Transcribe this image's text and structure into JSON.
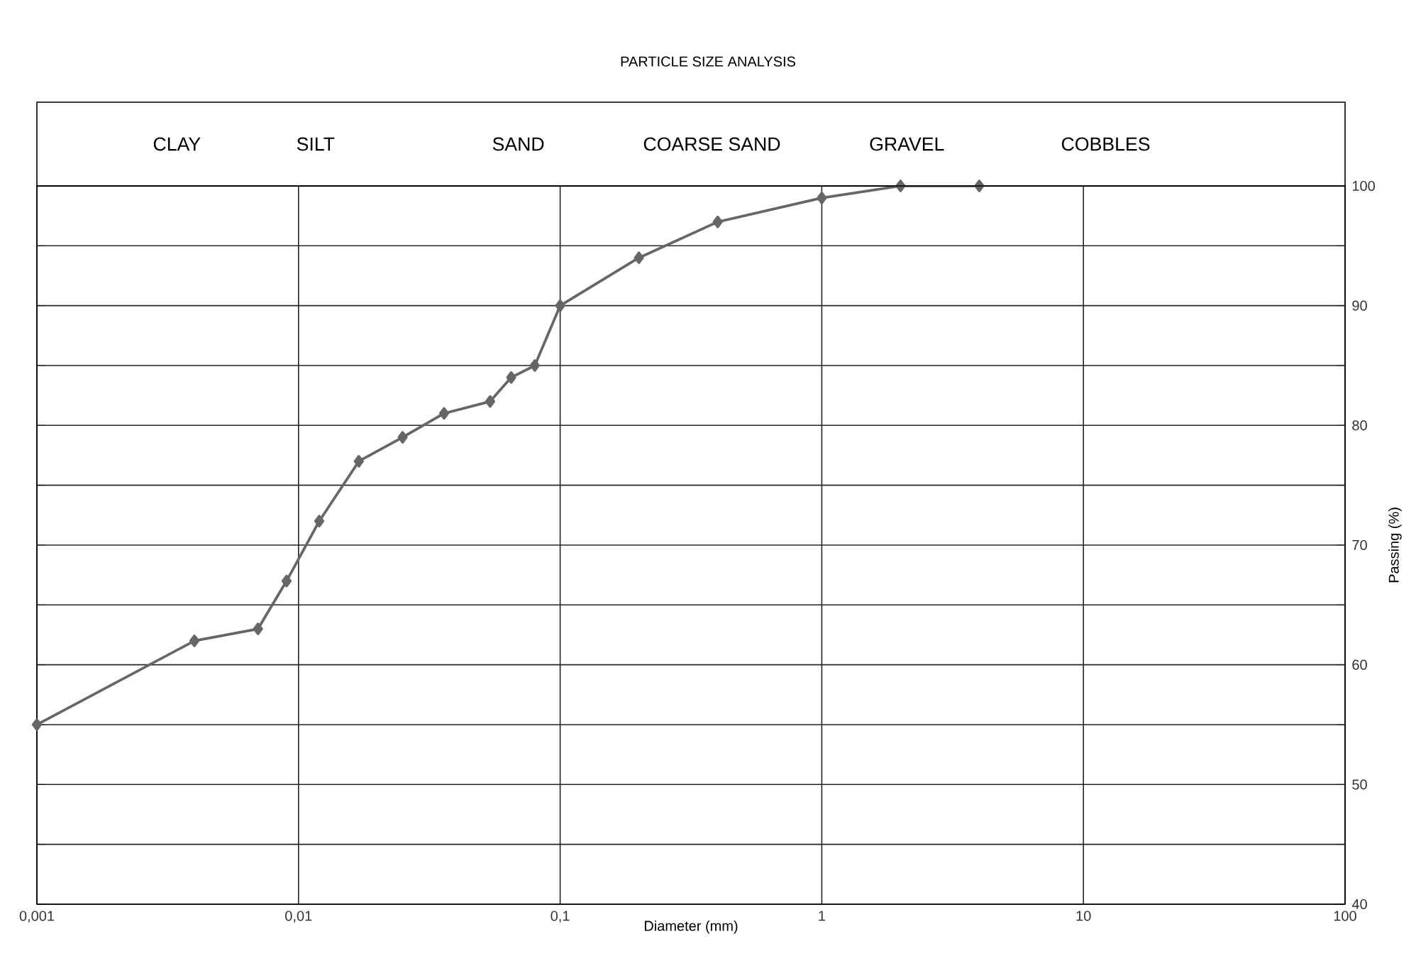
{
  "chart_data": {
    "type": "line",
    "title": "PARTICLE SIZE ANALYSIS",
    "xlabel": "Diameter (mm)",
    "ylabel": "Passing (%)",
    "annotations": [
      "CLAY",
      "SILT",
      "SAND",
      "COARSE SAND",
      "GRAVEL",
      "COBBLES"
    ],
    "log": "x",
    "grid": true,
    "marker": "diamond",
    "line_style": "solid",
    "xlim": [
      0.001,
      100
    ],
    "ylim": [
      40,
      100
    ],
    "xticks": [
      {
        "value": 0.001,
        "label": "0,001"
      },
      {
        "value": 0.01,
        "label": "0,01"
      },
      {
        "value": 0.1,
        "label": "0,1"
      },
      1,
      10,
      100
    ],
    "yticks": [
      40,
      {
        "value": 45,
        "label": null
      },
      50,
      {
        "value": 55,
        "label": null
      },
      60,
      {
        "value": 65,
        "label": null
      },
      70,
      {
        "value": 75,
        "label": null
      },
      80,
      {
        "value": 85,
        "label": null
      },
      90,
      {
        "value": 95,
        "label": null
      },
      100
    ],
    "series": [
      {
        "color": "#666666",
        "x": [
          0.001,
          0.004,
          0.007,
          0.009,
          0.012,
          0.017,
          0.025,
          0.036,
          0.054,
          0.065,
          0.08,
          0.1,
          0.2,
          0.4,
          1,
          2,
          4
        ],
        "values": [
          55,
          62,
          63,
          67,
          72,
          77,
          79,
          81,
          82,
          84,
          85,
          90,
          94,
          97,
          99,
          100,
          100
        ]
      }
    ]
  }
}
